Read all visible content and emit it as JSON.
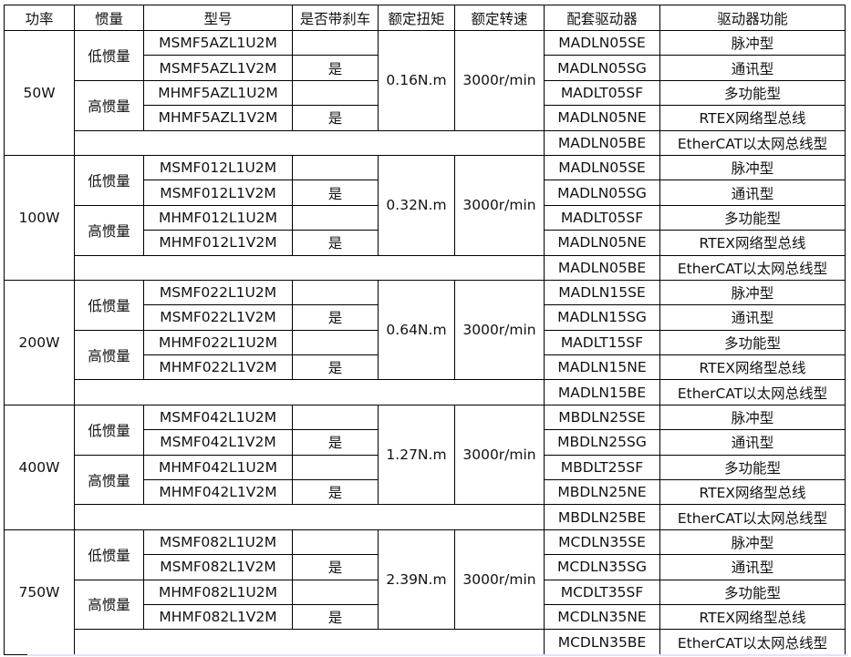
{
  "headers": [
    "功率",
    "惯量",
    "型号",
    "是否带刹车",
    "额定扭矩",
    "额定转速",
    "配套驱动器",
    "驱动器功能"
  ],
  "groups": [
    {
      "power": "50W",
      "torque": "0.16N.m",
      "speed": "3000r/min",
      "inertia": [
        {
          "label": "低惯量",
          "models": [
            {
              "model": "MSMF5AZL1U2M",
              "brake": ""
            },
            {
              "model": "MSMF5AZL1V2M",
              "brake": "是"
            }
          ]
        },
        {
          "label": "高惯量",
          "models": [
            {
              "model": "MHMF5AZL1U2M",
              "brake": ""
            },
            {
              "model": "MHMF5AZL1V2M",
              "brake": "是"
            }
          ]
        }
      ],
      "drivers": [
        {
          "model": "MADLN05SE",
          "function": "脉冲型"
        },
        {
          "model": "MADLN05SG",
          "function": "通讯型"
        },
        {
          "model": "MADLT05SF",
          "function": "多功能型"
        },
        {
          "model": "MADLN05NE",
          "function": "RTEX网络型总线"
        },
        {
          "model": "MADLN05BE",
          "function": "EtherCAT以太网总线型"
        }
      ]
    },
    {
      "power": "100W",
      "torque": "0.32N.m",
      "speed": "3000r/min",
      "inertia": [
        {
          "label": "低惯量",
          "models": [
            {
              "model": "MSMF012L1U2M",
              "brake": ""
            },
            {
              "model": "MSMF012L1V2M",
              "brake": "是"
            }
          ]
        },
        {
          "label": "高惯量",
          "models": [
            {
              "model": "MHMF012L1U2M",
              "brake": ""
            },
            {
              "model": "MHMF012L1V2M",
              "brake": "是"
            }
          ]
        }
      ],
      "drivers": [
        {
          "model": "MADLN05SE",
          "function": "脉冲型"
        },
        {
          "model": "MADLN05SG",
          "function": "通讯型"
        },
        {
          "model": "MADLT05SF",
          "function": "多功能型"
        },
        {
          "model": "MADLN05NE",
          "function": "RTEX网络型总线"
        },
        {
          "model": "MADLN05BE",
          "function": "EtherCAT以太网总线型"
        }
      ]
    },
    {
      "power": "200W",
      "torque": "0.64N.m",
      "speed": "3000r/min",
      "inertia": [
        {
          "label": "低惯量",
          "models": [
            {
              "model": "MSMF022L1U2M",
              "brake": ""
            },
            {
              "model": "MSMF022L1V2M",
              "brake": "是"
            }
          ]
        },
        {
          "label": "高惯量",
          "models": [
            {
              "model": "MHMF022L1U2M",
              "brake": ""
            },
            {
              "model": "MHMF022L1V2M",
              "brake": "是"
            }
          ]
        }
      ],
      "drivers": [
        {
          "model": "MADLN15SE",
          "function": "脉冲型"
        },
        {
          "model": "MADLN15SG",
          "function": "通讯型"
        },
        {
          "model": "MADLT15SF",
          "function": "多功能型"
        },
        {
          "model": "MADLN15NE",
          "function": "RTEX网络型总线"
        },
        {
          "model": "MADLN15BE",
          "function": "EtherCAT以太网总线型"
        }
      ]
    },
    {
      "power": "400W",
      "torque": "1.27N.m",
      "speed": "3000r/min",
      "inertia": [
        {
          "label": "低惯量",
          "models": [
            {
              "model": "MSMF042L1U2M",
              "brake": ""
            },
            {
              "model": "MSMF042L1V2M",
              "brake": "是"
            }
          ]
        },
        {
          "label": "高惯量",
          "models": [
            {
              "model": "MHMF042L1U2M",
              "brake": ""
            },
            {
              "model": "MHMF042L1V2M",
              "brake": "是"
            }
          ]
        }
      ],
      "drivers": [
        {
          "model": "MBDLN25SE",
          "function": "脉冲型"
        },
        {
          "model": "MBDLN25SG",
          "function": "通讯型"
        },
        {
          "model": "MBDLT25SF",
          "function": "多功能型"
        },
        {
          "model": "MBDLN25NE",
          "function": "RTEX网络型总线"
        },
        {
          "model": "MBDLN25BE",
          "function": "EtherCAT以太网总线型"
        }
      ]
    },
    {
      "power": "750W",
      "torque": "2.39N.m",
      "speed": "3000r/min",
      "inertia": [
        {
          "label": "低惯量",
          "models": [
            {
              "model": "MSMF082L1U2M",
              "brake": ""
            },
            {
              "model": "MSMF082L1V2M",
              "brake": "是"
            }
          ]
        },
        {
          "label": "高惯量",
          "models": [
            {
              "model": "MHMF082L1U2M",
              "brake": ""
            },
            {
              "model": "MHMF082L1V2M",
              "brake": "是"
            }
          ]
        }
      ],
      "drivers": [
        {
          "model": "MCDLN35SE",
          "function": "脉冲型"
        },
        {
          "model": "MCDLN35SG",
          "function": "通讯型"
        },
        {
          "model": "MCDLT35SF",
          "function": "多功能型"
        },
        {
          "model": "MCDLN35NE",
          "function": "RTEX网络型总线"
        },
        {
          "model": "MCDLN35BE",
          "function": "EtherCAT以太网总线型"
        }
      ]
    }
  ]
}
